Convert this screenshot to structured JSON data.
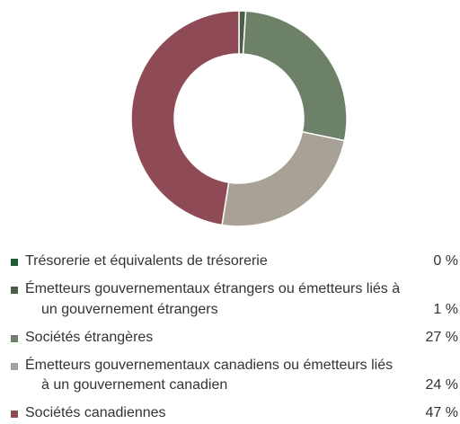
{
  "chart_data": {
    "type": "donut",
    "categories": [
      "Trésorerie et équivalents de trésorerie",
      "Émetteurs gouvernementaux étrangers ou émetteurs liés à un gouvernement étrangers",
      "Sociétés étrangères",
      "Émetteurs gouvernementaux canadiens ou émetteurs liés à un gouvernement canadien",
      "Sociétés canadiennes"
    ],
    "values": [
      0,
      1,
      27,
      24,
      47
    ],
    "value_labels": [
      "0 %",
      "1 %",
      "27 %",
      "24 %",
      "47 %"
    ],
    "colors": [
      "#1d5a36",
      "#4a5e4a",
      "#6d8068",
      "#a8a196",
      "#8e4b56"
    ]
  }
}
